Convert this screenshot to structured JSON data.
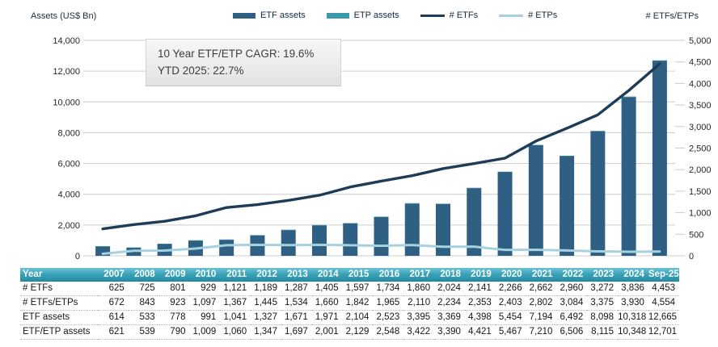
{
  "header": {
    "left_axis_title": "Assets (US$ Bn)",
    "right_axis_title": "# ETFs/ETPs"
  },
  "annotation": {
    "line1": "10 Year ETF/ETP CAGR: 19.6%",
    "line2": "YTD 2025: 22.7%"
  },
  "colors": {
    "etf_assets_bar": "#2F5F82",
    "etp_assets_bar": "#3A9AAC",
    "num_etfs_line": "#1E3C57",
    "num_etps_line": "#A5D2DE",
    "gridline": "#C9CDD1",
    "axis_text": "#262626",
    "table_header_teal": "#2E96AC"
  },
  "chart_data": {
    "type": "bar",
    "subtype": "stacked-bars-with-lines-combo",
    "title": "",
    "xlabel": "",
    "ylabel_left": "Assets (US$ Bn)",
    "ylabel_right": "# ETFs/ETPs",
    "grid": "horizontal",
    "legend_position": "top-center",
    "categories": [
      "2007",
      "2008",
      "2009",
      "2010",
      "2011",
      "2012",
      "2013",
      "2014",
      "2015",
      "2016",
      "2017",
      "2018",
      "2019",
      "2020",
      "2021",
      "2022",
      "2023",
      "2024",
      "Sep-25"
    ],
    "series": [
      {
        "name": "ETF assets",
        "type": "bar",
        "axis": "left",
        "color": "#2F5F82",
        "values": [
          614,
          533,
          778,
          991,
          1041,
          1327,
          1671,
          1971,
          2104,
          2523,
          3395,
          3369,
          4398,
          5454,
          7194,
          6492,
          8098,
          10318,
          12665
        ]
      },
      {
        "name": "ETP assets",
        "type": "bar",
        "axis": "left",
        "color": "#3A9AAC",
        "values": [
          7,
          6,
          12,
          18,
          19,
          20,
          26,
          30,
          25,
          25,
          27,
          21,
          23,
          13,
          16,
          14,
          17,
          30,
          36
        ]
      },
      {
        "name": "# ETFs",
        "type": "line",
        "axis": "right",
        "color": "#1E3C57",
        "values": [
          625,
          725,
          801,
          929,
          1121,
          1189,
          1287,
          1405,
          1597,
          1734,
          1860,
          2024,
          2141,
          2266,
          2662,
          2960,
          3272,
          3836,
          4453
        ]
      },
      {
        "name": "# ETPs",
        "type": "line",
        "axis": "right",
        "color": "#A5D2DE",
        "values": [
          47,
          118,
          122,
          168,
          246,
          256,
          247,
          255,
          245,
          231,
          250,
          210,
          212,
          137,
          140,
          124,
          103,
          94,
          101
        ]
      }
    ],
    "left_axis": {
      "min": 0,
      "max": 14000,
      "step": 2000,
      "ticks": [
        "0",
        "2,000",
        "4,000",
        "6,000",
        "8,000",
        "10,000",
        "12,000",
        "14,000"
      ]
    },
    "right_axis": {
      "min": 0,
      "max": 5000,
      "step": 500,
      "ticks": [
        "0",
        "500",
        "1,000",
        "1,500",
        "2,000",
        "2,500",
        "3,000",
        "3,500",
        "4,000",
        "4,500",
        "5,000"
      ]
    }
  },
  "table": {
    "header": [
      "Year",
      "2007",
      "2008",
      "2009",
      "2010",
      "2011",
      "2012",
      "2013",
      "2014",
      "2015",
      "2016",
      "2017",
      "2018",
      "2019",
      "2020",
      "2021",
      "2022",
      "2023",
      "2024",
      "Sep-25"
    ],
    "rows": [
      {
        "label": "# ETFs",
        "values": [
          "625",
          "725",
          "801",
          "929",
          "1,121",
          "1,189",
          "1,287",
          "1,405",
          "1,597",
          "1,734",
          "1,860",
          "2,024",
          "2,141",
          "2,266",
          "2,662",
          "2,960",
          "3,272",
          "3,836",
          "4,453"
        ]
      },
      {
        "label": "# ETFs/ETPs",
        "values": [
          "672",
          "843",
          "923",
          "1,097",
          "1,367",
          "1,445",
          "1,534",
          "1,660",
          "1,842",
          "1,965",
          "2,110",
          "2,234",
          "2,353",
          "2,403",
          "2,802",
          "3,084",
          "3,375",
          "3,930",
          "4,554"
        ]
      },
      {
        "label": "ETF assets",
        "values": [
          "614",
          "533",
          "778",
          "991",
          "1,041",
          "1,327",
          "1,671",
          "1,971",
          "2,104",
          "2,523",
          "3,395",
          "3,369",
          "4,398",
          "5,454",
          "7,194",
          "6,492",
          "8,098",
          "10,318",
          "12,665"
        ]
      },
      {
        "label": "ETF/ETP assets",
        "values": [
          "621",
          "539",
          "790",
          "1,009",
          "1,060",
          "1,347",
          "1,697",
          "2,001",
          "2,129",
          "2,548",
          "3,422",
          "3,390",
          "4,421",
          "5,467",
          "7,210",
          "6,506",
          "8,115",
          "10,348",
          "12,701"
        ]
      }
    ]
  }
}
